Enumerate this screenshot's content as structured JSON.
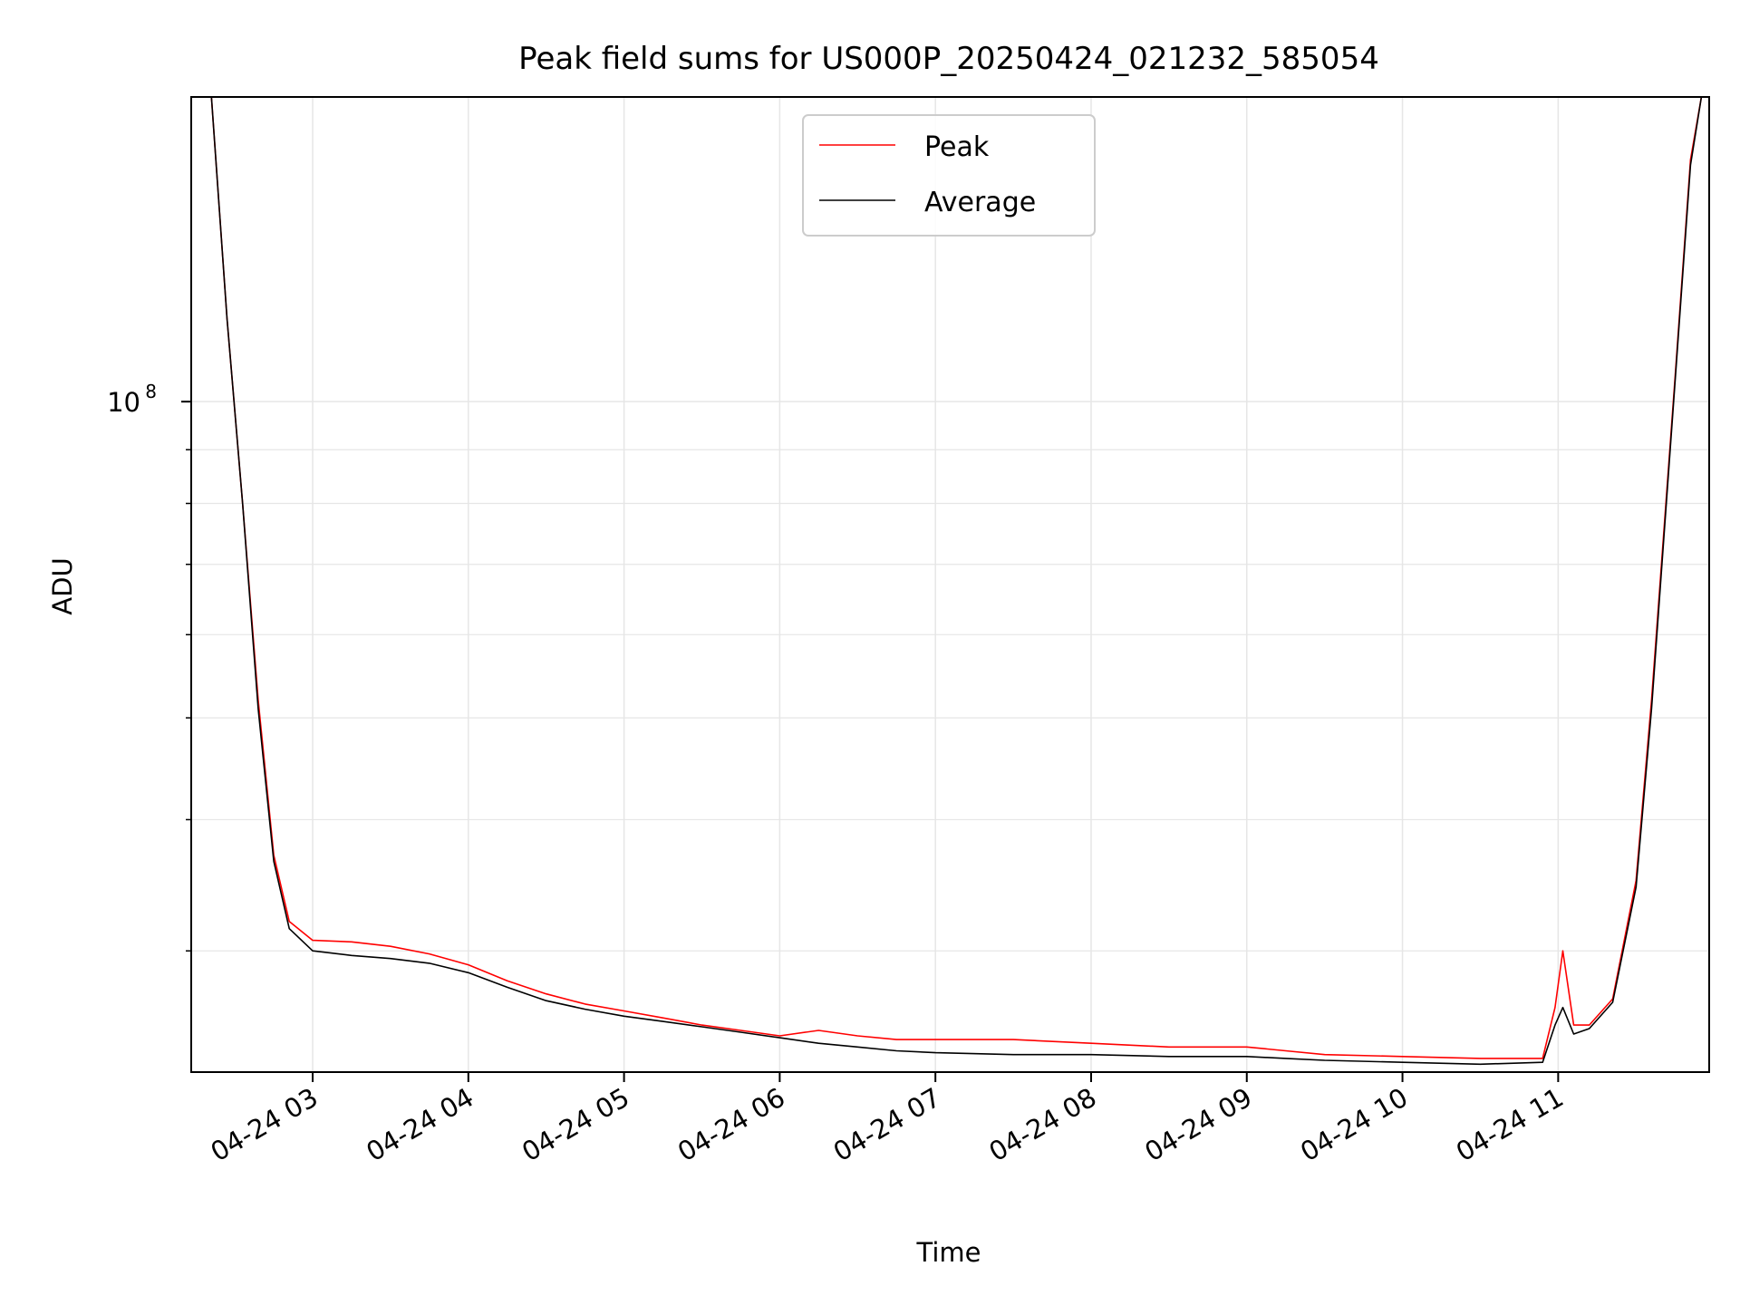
{
  "chart_data": {
    "type": "line",
    "title": "Peak field sums for US000P_20250424_021232_585054",
    "xlabel": "Time",
    "ylabel": "ADU",
    "y_scale": "log",
    "ylim": [
      23000000,
      195000000
    ],
    "x_unit": "hours (local time on 2025-04-24)",
    "xlim": [
      2.22,
      11.97
    ],
    "x_ticks": [
      {
        "value": 3,
        "label": "04-24 03"
      },
      {
        "value": 4,
        "label": "04-24 04"
      },
      {
        "value": 5,
        "label": "04-24 05"
      },
      {
        "value": 6,
        "label": "04-24 06"
      },
      {
        "value": 7,
        "label": "04-24 07"
      },
      {
        "value": 8,
        "label": "04-24 08"
      },
      {
        "value": 9,
        "label": "04-24 09"
      },
      {
        "value": 10,
        "label": "04-24 10"
      },
      {
        "value": 11,
        "label": "04-24 11"
      }
    ],
    "y_major_ticks": [
      {
        "value": 100000000,
        "base": "10",
        "exp": "8"
      }
    ],
    "y_minor_ticks": [
      30000000,
      40000000,
      50000000,
      60000000,
      70000000,
      80000000,
      90000000
    ],
    "grid": true,
    "legend": "top-center",
    "series": [
      {
        "name": "Peak",
        "color": "#ff0000",
        "x": [
          2.35,
          2.45,
          2.55,
          2.65,
          2.75,
          2.85,
          3.0,
          3.25,
          3.5,
          3.75,
          4.0,
          4.25,
          4.5,
          4.75,
          5.0,
          5.25,
          5.5,
          5.75,
          6.0,
          6.25,
          6.5,
          6.75,
          7.0,
          7.5,
          8.0,
          8.5,
          9.0,
          9.25,
          9.5,
          10.0,
          10.5,
          10.9,
          10.98,
          11.03,
          11.1,
          11.2,
          11.35,
          11.5,
          11.6,
          11.75,
          11.85,
          11.92
        ],
        "y": [
          195000000,
          120000000,
          80000000,
          52000000,
          37000000,
          32000000,
          30700000,
          30600000,
          30300000,
          29800000,
          29100000,
          28100000,
          27300000,
          26700000,
          26300000,
          25900000,
          25500000,
          25200000,
          24900000,
          25200000,
          24900000,
          24700000,
          24700000,
          24700000,
          24500000,
          24300000,
          24300000,
          24100000,
          23900000,
          23800000,
          23700000,
          23700000,
          26500000,
          30000000,
          25500000,
          25500000,
          27000000,
          35000000,
          52000000,
          105000000,
          170000000,
          195000000
        ]
      },
      {
        "name": "Average",
        "color": "#000000",
        "x": [
          2.35,
          2.45,
          2.55,
          2.65,
          2.75,
          2.85,
          3.0,
          3.25,
          3.5,
          3.75,
          4.0,
          4.25,
          4.5,
          4.75,
          5.0,
          5.25,
          5.5,
          5.75,
          6.0,
          6.25,
          6.5,
          6.75,
          7.0,
          7.5,
          8.0,
          8.5,
          9.0,
          9.25,
          9.5,
          10.0,
          10.5,
          10.9,
          10.98,
          11.03,
          11.1,
          11.2,
          11.35,
          11.5,
          11.6,
          11.75,
          11.85,
          11.92
        ],
        "y": [
          195000000,
          120000000,
          80000000,
          51000000,
          36500000,
          31500000,
          30000000,
          29700000,
          29500000,
          29200000,
          28600000,
          27700000,
          26900000,
          26400000,
          26000000,
          25700000,
          25400000,
          25100000,
          24800000,
          24500000,
          24300000,
          24100000,
          24000000,
          23900000,
          23900000,
          23800000,
          23800000,
          23700000,
          23600000,
          23500000,
          23400000,
          23500000,
          25500000,
          26500000,
          25000000,
          25300000,
          26800000,
          34500000,
          51000000,
          104000000,
          168000000,
          195000000
        ]
      }
    ]
  }
}
